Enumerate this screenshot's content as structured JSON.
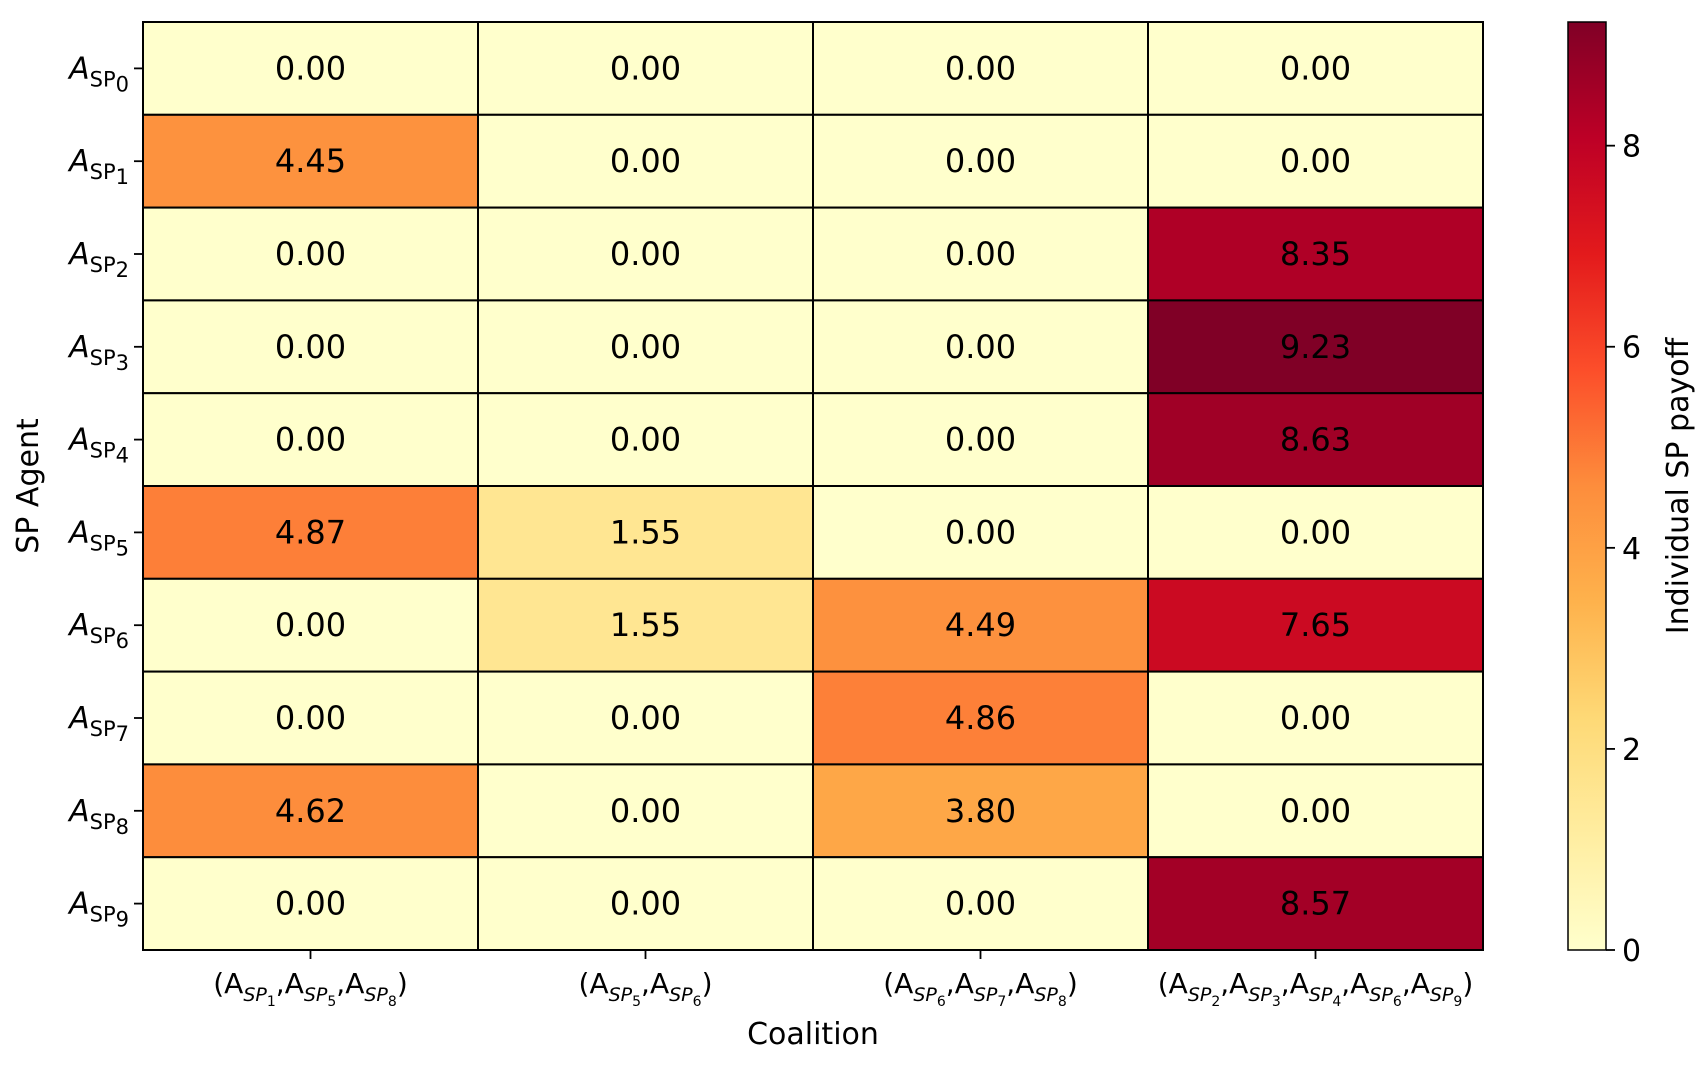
{
  "chart_data": {
    "type": "heatmap",
    "xlabel": "Coalition",
    "ylabel": "SP Agent",
    "colorbar_label": "Individual SP payoff",
    "colorbar_ticks": [
      "0",
      "2",
      "4",
      "6",
      "8"
    ],
    "colorbar_range": [
      0,
      9.23
    ],
    "colormap": [
      "#ffffcc",
      "#ffeda0",
      "#fed976",
      "#feb24c",
      "#fd8d3c",
      "#fc4e2a",
      "#e31a1c",
      "#bd0026",
      "#800026"
    ],
    "value_labels": [
      [
        "0.00",
        "0.00",
        "0.00",
        "0.00"
      ],
      [
        "4.45",
        "0.00",
        "0.00",
        "0.00"
      ],
      [
        "0.00",
        "0.00",
        "0.00",
        "8.35"
      ],
      [
        "0.00",
        "0.00",
        "0.00",
        "9.23"
      ],
      [
        "0.00",
        "0.00",
        "0.00",
        "8.63"
      ],
      [
        "4.87",
        "1.55",
        "0.00",
        "0.00"
      ],
      [
        "0.00",
        "1.55",
        "4.49",
        "7.65"
      ],
      [
        "0.00",
        "0.00",
        "4.86",
        "0.00"
      ],
      [
        "4.62",
        "0.00",
        "3.80",
        "0.00"
      ],
      [
        "0.00",
        "0.00",
        "0.00",
        "8.57"
      ]
    ],
    "values": [
      [
        0.0,
        0.0,
        0.0,
        0.0
      ],
      [
        4.45,
        0.0,
        0.0,
        0.0
      ],
      [
        0.0,
        0.0,
        0.0,
        8.35
      ],
      [
        0.0,
        0.0,
        0.0,
        9.23
      ],
      [
        0.0,
        0.0,
        0.0,
        8.63
      ],
      [
        4.87,
        1.55,
        0.0,
        0.0
      ],
      [
        0.0,
        1.55,
        4.49,
        7.65
      ],
      [
        0.0,
        0.0,
        4.86,
        0.0
      ],
      [
        4.62,
        0.0,
        3.8,
        0.0
      ],
      [
        0.0,
        0.0,
        0.0,
        8.57
      ]
    ],
    "rows": [
      {
        "base": "A",
        "sub": "SP",
        "index": "0"
      },
      {
        "base": "A",
        "sub": "SP",
        "index": "1"
      },
      {
        "base": "A",
        "sub": "SP",
        "index": "2"
      },
      {
        "base": "A",
        "sub": "SP",
        "index": "3"
      },
      {
        "base": "A",
        "sub": "SP",
        "index": "4"
      },
      {
        "base": "A",
        "sub": "SP",
        "index": "5"
      },
      {
        "base": "A",
        "sub": "SP",
        "index": "6"
      },
      {
        "base": "A",
        "sub": "SP",
        "index": "7"
      },
      {
        "base": "A",
        "sub": "SP",
        "index": "8"
      },
      {
        "base": "A",
        "sub": "SP",
        "index": "9"
      }
    ],
    "columns": [
      {
        "members": [
          "1",
          "5",
          "8"
        ]
      },
      {
        "members": [
          "5",
          "6"
        ]
      },
      {
        "members": [
          "6",
          "7",
          "8"
        ]
      },
      {
        "members": [
          "2",
          "3",
          "4",
          "6",
          "9"
        ]
      }
    ],
    "grid": false,
    "legend": "colorbar-right"
  }
}
